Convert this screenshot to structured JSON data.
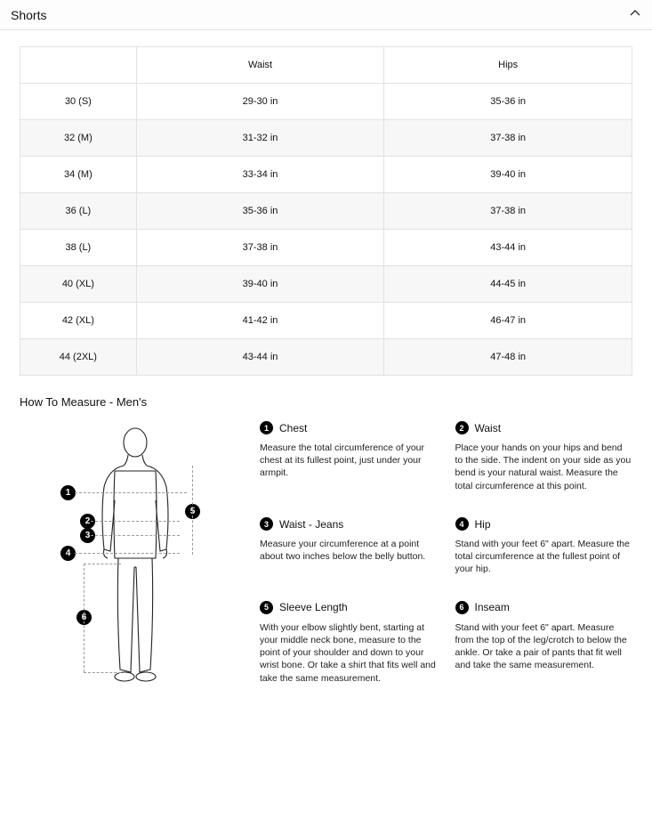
{
  "accordion": {
    "title": "Shorts"
  },
  "table": {
    "columns": [
      "",
      "Waist",
      "Hips"
    ],
    "rows": [
      [
        "30 (S)",
        "29-30 in",
        "35-36 in"
      ],
      [
        "32 (M)",
        "31-32 in",
        "37-38 in"
      ],
      [
        "34 (M)",
        "33-34 in",
        "39-40 in"
      ],
      [
        "36 (L)",
        "35-36 in",
        "37-38 in"
      ],
      [
        "38 (L)",
        "37-38 in",
        "43-44 in"
      ],
      [
        "40 (XL)",
        "39-40 in",
        "44-45 in"
      ],
      [
        "42 (XL)",
        "41-42 in",
        "46-47 in"
      ],
      [
        "44 (2XL)",
        "43-44 in",
        "47-48 in"
      ]
    ],
    "col_widths": [
      "19%",
      "40.5%",
      "40.5%"
    ],
    "border_color": "#e2e2e2",
    "row_alt_bg": "#f7f7f7",
    "font_size": 11
  },
  "howHeader": "How To Measure - Men's",
  "instructions": [
    {
      "num": "1",
      "title": "Chest",
      "text": "Measure the total circumference of your chest at its fullest point, just under your armpit."
    },
    {
      "num": "2",
      "title": "Waist",
      "text": "Place your hands on your hips and bend to the side. The indent on your side as you bend is your natural waist. Measure the total circumference at this point."
    },
    {
      "num": "3",
      "title": "Waist - Jeans",
      "text": "Measure your circumference at a point about two inches below the belly button."
    },
    {
      "num": "4",
      "title": "Hip",
      "text": "Stand with your feet 6\" apart. Measure the total circumference at the fullest point of your hip."
    },
    {
      "num": "5",
      "title": "Sleeve Length",
      "text": "With your elbow slightly bent, starting at your middle neck bone, measure to the point of your shoulder and down to your wrist bone. Or take a shirt that fits well and take the same measurement."
    },
    {
      "num": "6",
      "title": "Inseam",
      "text": "Stand with your feet 6\" apart. Measure from the top of the leg/crotch to below the ankle. Or take a pair of pants that fit well and take the same measurement."
    }
  ],
  "markers": [
    "1",
    "2",
    "3",
    "4",
    "5",
    "6"
  ],
  "colors": {
    "text": "#111111",
    "bg": "#ffffff",
    "border": "#e2e2e2",
    "bullet_bg": "#000000",
    "bullet_fg": "#ffffff"
  }
}
